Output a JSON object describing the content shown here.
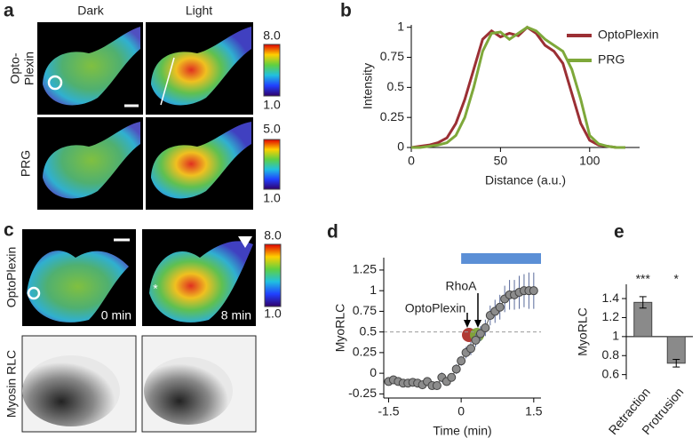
{
  "panel_labels": [
    "a",
    "b",
    "c",
    "d",
    "e"
  ],
  "image_panels": {
    "a": {
      "columns": [
        "Dark",
        "Light"
      ],
      "row_labels": [
        {
          "lines": [
            "Opto-",
            "Plexin"
          ]
        },
        {
          "lines": [
            "PRG"
          ]
        }
      ],
      "colorbars": [
        {
          "max": "8.0",
          "min": "1.0"
        },
        {
          "max": "5.0",
          "min": "1.0"
        }
      ]
    },
    "c": {
      "row_labels": [
        "OptoPlexin",
        "Myosin RLC"
      ],
      "times": [
        "0 min",
        "8 min"
      ],
      "colorbar": {
        "max": "8.0",
        "min": "1.0"
      },
      "marker": "*"
    }
  },
  "chart_data": [
    {
      "type": "line",
      "x_label": "Distance (a.u.)",
      "y_label": "Intensity",
      "legend": "upper right",
      "x": [
        0,
        5,
        10,
        15,
        20,
        25,
        30,
        35,
        40,
        45,
        50,
        55,
        60,
        65,
        70,
        75,
        80,
        85,
        90,
        95,
        100,
        105,
        110,
        115,
        120
      ],
      "series": [
        {
          "name": "OptoPlexin",
          "color": "#9b2f34",
          "values": [
            0,
            0.01,
            0.02,
            0.04,
            0.08,
            0.2,
            0.4,
            0.65,
            0.9,
            0.97,
            0.92,
            0.95,
            0.93,
            1.0,
            0.95,
            0.85,
            0.8,
            0.7,
            0.45,
            0.2,
            0.06,
            0.02,
            0.01,
            0,
            0
          ]
        },
        {
          "name": "PRG",
          "color": "#7ea83a",
          "values": [
            0,
            0,
            0.01,
            0.02,
            0.04,
            0.1,
            0.25,
            0.5,
            0.8,
            0.95,
            0.96,
            0.9,
            0.95,
            1.0,
            0.97,
            0.9,
            0.85,
            0.8,
            0.65,
            0.4,
            0.1,
            0.03,
            0.01,
            0,
            0
          ]
        }
      ],
      "xlim": [
        0,
        128
      ],
      "ylim": [
        0,
        1.02
      ],
      "xticks": [
        0,
        50,
        100
      ],
      "yticks": [
        0,
        0.25,
        0.5,
        0.75,
        1
      ]
    },
    {
      "type": "errorline",
      "x_label": "Time (min)",
      "y_label": "MyoRLC",
      "annotations": [
        "RhoA",
        "OptoPlexin"
      ],
      "x": [
        -1.5,
        -1.4,
        -1.3,
        -1.2,
        -1.1,
        -1.0,
        -0.9,
        -0.8,
        -0.7,
        -0.6,
        -0.5,
        -0.4,
        -0.3,
        -0.2,
        -0.1,
        0,
        0.1,
        0.2,
        0.3,
        0.4,
        0.5,
        0.6,
        0.7,
        0.8,
        0.9,
        1.0,
        1.1,
        1.2,
        1.3,
        1.4,
        1.5
      ],
      "series": [
        {
          "color": "#8c8c8c",
          "values": [
            -0.1,
            -0.08,
            -0.1,
            -0.12,
            -0.12,
            -0.11,
            -0.12,
            -0.14,
            -0.1,
            -0.15,
            -0.15,
            -0.05,
            -0.1,
            -0.05,
            0.05,
            0.15,
            0.25,
            0.3,
            0.4,
            0.48,
            0.55,
            0.7,
            0.75,
            0.8,
            0.9,
            0.95,
            0.95,
            0.98,
            1.0,
            1.0,
            1.0
          ],
          "errors": [
            0.05,
            0.04,
            0.04,
            0.05,
            0.04,
            0.04,
            0.05,
            0.04,
            0.05,
            0.04,
            0.05,
            0.06,
            0.05,
            0.05,
            0.06,
            0.06,
            0.07,
            0.08,
            0.08,
            0.09,
            0.1,
            0.12,
            0.14,
            0.15,
            0.16,
            0.18,
            0.18,
            0.2,
            0.2,
            0.22,
            0.22
          ]
        }
      ],
      "highlight": {
        "x": [
          0,
          1.65
        ],
        "color": "#5b8fd6"
      },
      "reference_line": 0.5,
      "xlim": [
        -1.6,
        1.65
      ],
      "ylim": [
        -0.3,
        1.4
      ],
      "xticks": [
        -1.5,
        0,
        1.5
      ],
      "yticks": [
        -0.25,
        0,
        0.25,
        0.5,
        0.75,
        1,
        1.25
      ]
    },
    {
      "type": "bar",
      "y_label": "MyoRLC",
      "categories": [
        "Retraction",
        "Protrusion"
      ],
      "values": [
        1.36,
        0.72
      ],
      "errors": [
        0.06,
        0.04
      ],
      "value_labels": [
        "***",
        "*"
      ],
      "color": "#8a8a8a",
      "bar_base": 1,
      "ylim": [
        0.55,
        1.55
      ],
      "yticks": [
        0.6,
        0.8,
        1,
        1.2,
        1.4
      ]
    }
  ]
}
